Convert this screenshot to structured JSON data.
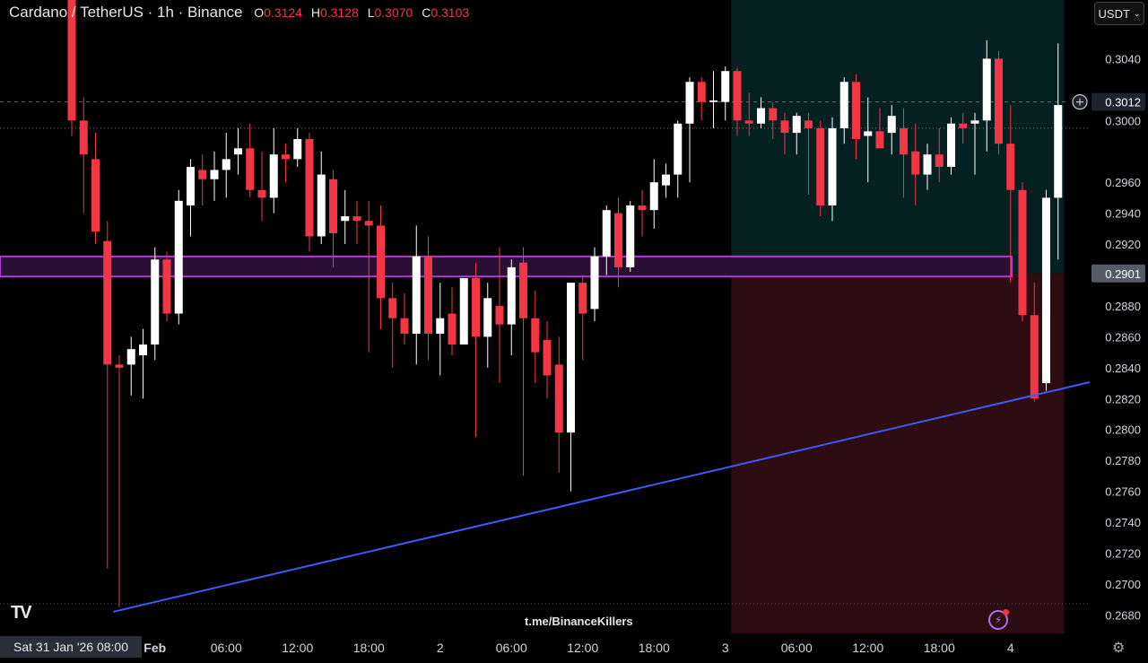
{
  "header": {
    "title": "Cardano / TetherUS · 1h · Binance",
    "open_label": "O",
    "open": "0.3124",
    "high_label": "H",
    "high": "0.3128",
    "low_label": "L",
    "low": "0.3070",
    "close_label": "C",
    "close": "0.3103"
  },
  "toolbar": {
    "currency": "USDT"
  },
  "watermark": "t.me/BinanceKillers",
  "crosshair_date": "Sat 31 Jan '26   08:00",
  "colors": {
    "up": "#ffffff",
    "down": "#f23645",
    "trendline": "#3d5afe",
    "zone_border": "#b03ad6",
    "target_zone": "#0a3a3a",
    "stop_zone": "#3a1016"
  },
  "icons": {
    "logo": "tradingview-logo-icon",
    "alert": "bolt-alert-icon",
    "settings": "gear-icon",
    "add": "plus-circle-icon"
  },
  "chart_data": {
    "type": "candlestick",
    "symbol": "ADAUSDT",
    "interval": "1h",
    "ylim": [
      0.2668,
      0.3078
    ],
    "y_ticks": [
      "0.3040",
      "0.3000",
      "0.2960",
      "0.2940",
      "0.2920",
      "0.2880",
      "0.2860",
      "0.2840",
      "0.2820",
      "0.2800",
      "0.2780",
      "0.2760",
      "0.2740",
      "0.2720",
      "0.2700",
      "0.2680"
    ],
    "x_ticks": [
      {
        "label": "Feb",
        "bar": 7
      },
      {
        "label": "06:00",
        "bar": 13
      },
      {
        "label": "12:00",
        "bar": 19
      },
      {
        "label": "18:00",
        "bar": 25
      },
      {
        "label": "2",
        "bar": 31
      },
      {
        "label": "06:00",
        "bar": 37
      },
      {
        "label": "12:00",
        "bar": 43
      },
      {
        "label": "18:00",
        "bar": 49
      },
      {
        "label": "3",
        "bar": 55
      },
      {
        "label": "06:00",
        "bar": 61
      },
      {
        "label": "12:00",
        "bar": 67
      },
      {
        "label": "18:00",
        "bar": 73
      },
      {
        "label": "4",
        "bar": 79
      }
    ],
    "candles": [
      [
        0.3124,
        0.3128,
        0.299,
        0.3
      ],
      [
        0.3,
        0.3015,
        0.294,
        0.2978
      ],
      [
        0.2975,
        0.2992,
        0.292,
        0.2928
      ],
      [
        0.2922,
        0.2935,
        0.271,
        0.2842
      ],
      [
        0.2842,
        0.2848,
        0.2685,
        0.284
      ],
      [
        0.2842,
        0.286,
        0.2822,
        0.2852
      ],
      [
        0.2848,
        0.2865,
        0.282,
        0.2855
      ],
      [
        0.2855,
        0.2918,
        0.2845,
        0.291
      ],
      [
        0.291,
        0.2915,
        0.287,
        0.2875
      ],
      [
        0.2875,
        0.2955,
        0.2868,
        0.2948
      ],
      [
        0.2945,
        0.2975,
        0.2925,
        0.297
      ],
      [
        0.2968,
        0.2978,
        0.2945,
        0.2962
      ],
      [
        0.2962,
        0.298,
        0.2948,
        0.2968
      ],
      [
        0.2968,
        0.2992,
        0.295,
        0.2975
      ],
      [
        0.2978,
        0.2995,
        0.2965,
        0.2982
      ],
      [
        0.2982,
        0.2998,
        0.295,
        0.2955
      ],
      [
        0.2955,
        0.298,
        0.2935,
        0.295
      ],
      [
        0.295,
        0.2995,
        0.294,
        0.2978
      ],
      [
        0.2978,
        0.2985,
        0.296,
        0.2975
      ],
      [
        0.2975,
        0.2995,
        0.297,
        0.2988
      ],
      [
        0.2988,
        0.2992,
        0.2915,
        0.2925
      ],
      [
        0.2925,
        0.298,
        0.292,
        0.2965
      ],
      [
        0.2962,
        0.2968,
        0.2905,
        0.2927
      ],
      [
        0.2935,
        0.2955,
        0.292,
        0.2938
      ],
      [
        0.2938,
        0.2948,
        0.292,
        0.2935
      ],
      [
        0.2935,
        0.2948,
        0.285,
        0.2932
      ],
      [
        0.2932,
        0.2945,
        0.2865,
        0.2885
      ],
      [
        0.2885,
        0.2895,
        0.284,
        0.2872
      ],
      [
        0.2872,
        0.2888,
        0.2855,
        0.2862
      ],
      [
        0.2862,
        0.2932,
        0.2842,
        0.2912
      ],
      [
        0.2912,
        0.2925,
        0.2845,
        0.2862
      ],
      [
        0.2862,
        0.2895,
        0.2835,
        0.2872
      ],
      [
        0.2875,
        0.2892,
        0.2848,
        0.2855
      ],
      [
        0.2855,
        0.2898,
        0.2855,
        0.2898
      ],
      [
        0.2898,
        0.2908,
        0.2795,
        0.286
      ],
      [
        0.286,
        0.2895,
        0.284,
        0.2885
      ],
      [
        0.288,
        0.2918,
        0.283,
        0.2868
      ],
      [
        0.2868,
        0.291,
        0.2848,
        0.2905
      ],
      [
        0.2908,
        0.2918,
        0.277,
        0.2872
      ],
      [
        0.2872,
        0.289,
        0.283,
        0.285
      ],
      [
        0.2858,
        0.287,
        0.282,
        0.2835
      ],
      [
        0.2842,
        0.286,
        0.2772,
        0.2798
      ],
      [
        0.2798,
        0.2892,
        0.276,
        0.2895
      ],
      [
        0.2895,
        0.29,
        0.2845,
        0.2875
      ],
      [
        0.2878,
        0.2918,
        0.287,
        0.2912
      ],
      [
        0.2912,
        0.2945,
        0.29,
        0.2942
      ],
      [
        0.294,
        0.295,
        0.2892,
        0.2905
      ],
      [
        0.2905,
        0.2948,
        0.2902,
        0.2945
      ],
      [
        0.2945,
        0.2955,
        0.2925,
        0.2942
      ],
      [
        0.2942,
        0.2975,
        0.293,
        0.296
      ],
      [
        0.2958,
        0.2972,
        0.295,
        0.2965
      ],
      [
        0.2965,
        0.3,
        0.295,
        0.2998
      ],
      [
        0.2998,
        0.3028,
        0.296,
        0.3025
      ],
      [
        0.3025,
        0.3028,
        0.3,
        0.3012
      ],
      [
        0.3012,
        0.3032,
        0.2995,
        0.3013
      ],
      [
        0.3012,
        0.3035,
        0.3,
        0.3032
      ],
      [
        0.3032,
        0.3034,
        0.299,
        0.3
      ],
      [
        0.3,
        0.3018,
        0.299,
        0.2998
      ],
      [
        0.2998,
        0.3015,
        0.2995,
        0.3008
      ],
      [
        0.3008,
        0.3012,
        0.2988,
        0.3
      ],
      [
        0.3,
        0.3005,
        0.2978,
        0.2992
      ],
      [
        0.2992,
        0.3005,
        0.2978,
        0.3003
      ],
      [
        0.3,
        0.3005,
        0.2952,
        0.2995
      ],
      [
        0.2995,
        0.3,
        0.2938,
        0.2945
      ],
      [
        0.2945,
        0.3002,
        0.2935,
        0.2995
      ],
      [
        0.2995,
        0.3028,
        0.2985,
        0.3025
      ],
      [
        0.3025,
        0.303,
        0.2975,
        0.2988
      ],
      [
        0.299,
        0.3015,
        0.296,
        0.2993
      ],
      [
        0.2993,
        0.3008,
        0.2982,
        0.2982
      ],
      [
        0.2992,
        0.301,
        0.2978,
        0.3003
      ],
      [
        0.2995,
        0.3008,
        0.295,
        0.2978
      ],
      [
        0.298,
        0.2998,
        0.2945,
        0.2965
      ],
      [
        0.2965,
        0.2985,
        0.2955,
        0.2978
      ],
      [
        0.2978,
        0.2995,
        0.296,
        0.297
      ],
      [
        0.297,
        0.3002,
        0.2965,
        0.2998
      ],
      [
        0.2998,
        0.3005,
        0.2985,
        0.2995
      ],
      [
        0.2998,
        0.3005,
        0.2965,
        0.3
      ],
      [
        0.3,
        0.3052,
        0.298,
        0.304
      ],
      [
        0.304,
        0.3045,
        0.2978,
        0.2985
      ],
      [
        0.2985,
        0.301,
        0.2895,
        0.2955
      ],
      [
        0.2955,
        0.296,
        0.287,
        0.2874
      ],
      [
        0.2874,
        0.2895,
        0.2818,
        0.282
      ],
      [
        0.283,
        0.2955,
        0.2825,
        0.295
      ],
      [
        0.295,
        0.305,
        0.291,
        0.301
      ]
    ],
    "current_price": "0.3012",
    "level_price": "0.2901",
    "dotted_level": 0.2995,
    "trendline": {
      "from": {
        "bar": 3.5,
        "price": 0.2682
      },
      "to": {
        "bar": 82,
        "price": 0.2824
      }
    },
    "horizontal_zone": {
      "top": 0.2912,
      "bottom": 0.2899
    },
    "target_zone": {
      "from_bar": 56,
      "to_bar": 84,
      "top": 0.3078,
      "bottom": 0.2901
    },
    "stop_zone": {
      "from_bar": 56,
      "to_bar": 84,
      "top": 0.2901,
      "bottom": 0.2668
    }
  }
}
